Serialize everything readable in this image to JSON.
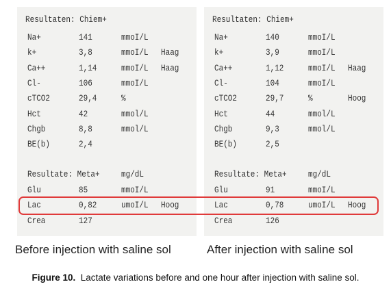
{
  "panels": [
    {
      "title": "Resultaten: Chiem+",
      "rows": [
        [
          "Na+",
          "141",
          "mmoI/L"
        ],
        [
          "k+",
          "3,8",
          "mmoI/L",
          "Haag"
        ],
        [
          "Ca++",
          "1,14",
          "mmoI/L",
          "Haag"
        ],
        [
          "Cl-",
          "106",
          "mmoI/L"
        ],
        [
          "cTCO2",
          "29,4",
          "%"
        ],
        [
          "Hct",
          "42",
          "mmol/L"
        ],
        [
          "Chgb",
          "8,8",
          "mmol/L"
        ],
        [
          "BE(b)",
          "2,4"
        ]
      ],
      "meta_header": [
        "Resultate: Meta+",
        "mg/dL"
      ],
      "meta_rows": [
        [
          "Glu",
          "85",
          "mmoI/L"
        ],
        [
          "Lac",
          "0,82",
          "umoI/L",
          "Hoog"
        ],
        [
          "Crea",
          "127"
        ]
      ],
      "label": "Before injection with saline sol"
    },
    {
      "title": "Resultaten: Chiem+",
      "rows": [
        [
          "Na+",
          "140",
          "mmoI/L"
        ],
        [
          "k+",
          "3,9",
          "mmoI/L"
        ],
        [
          "Ca++",
          "1,12",
          "mmoI/L",
          "Haag"
        ],
        [
          "Cl-",
          "104",
          "mmoI/L"
        ],
        [
          "cTCO2",
          "29,7",
          "%",
          "Hoog"
        ],
        [
          "Hct",
          "44",
          "mmol/L"
        ],
        [
          "Chgb",
          "9,3",
          "mmol/L"
        ],
        [
          "BE(b)",
          "2,5"
        ]
      ],
      "meta_header": [
        "Resultate: Meta+",
        "mg/dL"
      ],
      "meta_rows": [
        [
          "Glu",
          "91",
          "mmoI/L"
        ],
        [
          "Lac",
          "0,78",
          "umoI/L",
          "Hoog"
        ],
        [
          "Crea",
          "126"
        ]
      ],
      "label": "After injection with saline sol"
    }
  ],
  "caption": {
    "label": "Figure 10.",
    "text": "Lactate variations before and one hour after injection with saline sol."
  }
}
